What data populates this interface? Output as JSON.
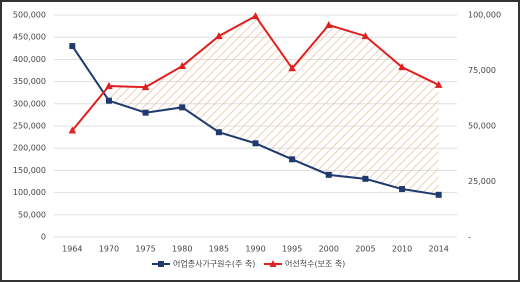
{
  "chart_data": {
    "type": "line",
    "categories": [
      "1964",
      "1970",
      "1975",
      "1980",
      "1985",
      "1990",
      "1995",
      "2000",
      "2005",
      "2010",
      "2014"
    ],
    "series": [
      {
        "name": "어업종사가구원수(주 축)",
        "color": "#1f3a6e",
        "marker": "square",
        "values": [
          430000,
          307000,
          280000,
          292000,
          236000,
          211000,
          175000,
          140000,
          131000,
          108000,
          95000
        ]
      },
      {
        "name": "어선척수(보조 축)",
        "color": "#e02020",
        "marker": "triangle",
        "axis": "y2",
        "values": [
          48000,
          68000,
          67500,
          77000,
          90500,
          99500,
          76000,
          95500,
          90500,
          76500,
          68500
        ]
      }
    ],
    "ylim": [
      0,
      500000
    ],
    "yticks": [
      0,
      {
        "value": 50000,
        "label": "50,000"
      },
      {
        "value": 100000,
        "label": "100,000"
      },
      {
        "value": 150000,
        "label": "150,000"
      },
      {
        "value": 200000,
        "label": "200,000"
      },
      {
        "value": 250000,
        "label": "250,000"
      },
      {
        "value": 300000,
        "label": "300,000"
      },
      {
        "value": 350000,
        "label": "350,000"
      },
      {
        "value": 400000,
        "label": "400,000"
      },
      {
        "value": 450000,
        "label": "450,000"
      },
      {
        "value": 500000,
        "label": "500,000"
      }
    ],
    "y2lim": [
      0,
      100000
    ],
    "y2ticks": [
      {
        "value": 0,
        "label": "-"
      },
      {
        "value": 25000,
        "label": "25,000"
      },
      {
        "value": 50000,
        "label": "50,000"
      },
      {
        "value": 75000,
        "label": "75,000"
      },
      {
        "value": 100000,
        "label": "100,000"
      }
    ],
    "grid": true
  }
}
